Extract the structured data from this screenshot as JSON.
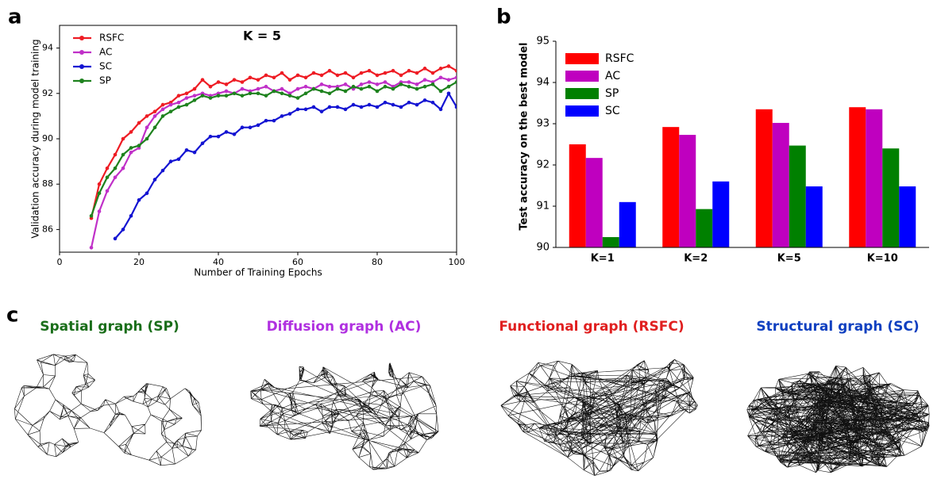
{
  "panels": [
    "a",
    "b",
    "c"
  ],
  "chart_data": [
    {
      "type": "line",
      "annotation": "K = 5",
      "x_label": "Number of Training Epochs",
      "y_label": "Validation accuracy during model training",
      "x": [
        8,
        10,
        12,
        14,
        16,
        18,
        20,
        22,
        24,
        26,
        28,
        30,
        32,
        34,
        36,
        38,
        40,
        42,
        44,
        46,
        48,
        50,
        52,
        54,
        56,
        58,
        60,
        62,
        64,
        66,
        68,
        70,
        72,
        74,
        76,
        78,
        80,
        82,
        84,
        86,
        88,
        90,
        92,
        94,
        96,
        98,
        100
      ],
      "series": [
        {
          "name": "RSFC",
          "color": "#ee1c24",
          "values": [
            86.5,
            88,
            88.7,
            89.3,
            90,
            90.3,
            90.7,
            91,
            91.2,
            91.5,
            91.6,
            91.9,
            92,
            92.2,
            92.6,
            92.3,
            92.5,
            92.4,
            92.6,
            92.5,
            92.7,
            92.6,
            92.8,
            92.7,
            92.9,
            92.6,
            92.8,
            92.7,
            92.9,
            92.8,
            93,
            92.8,
            92.9,
            92.7,
            92.9,
            93,
            92.8,
            92.9,
            93,
            92.8,
            93,
            92.9,
            93.1,
            92.9,
            93.1,
            93.2,
            93
          ]
        },
        {
          "name": "AC",
          "color": "#c030c8",
          "values": [
            85.2,
            86.8,
            87.7,
            88.3,
            88.7,
            89.4,
            89.6,
            90.5,
            91,
            91.3,
            91.5,
            91.6,
            91.8,
            91.9,
            92,
            91.9,
            92,
            92.1,
            92,
            92.2,
            92.1,
            92.2,
            92.3,
            92.1,
            92.2,
            92,
            92.2,
            92.3,
            92.2,
            92.4,
            92.3,
            92.3,
            92.4,
            92.2,
            92.4,
            92.5,
            92.4,
            92.5,
            92.3,
            92.5,
            92.5,
            92.4,
            92.6,
            92.5,
            92.7,
            92.6,
            92.7
          ]
        },
        {
          "name": "SC",
          "color": "#1414d2",
          "values": [
            null,
            null,
            null,
            85.6,
            86,
            86.6,
            87.3,
            87.6,
            88.2,
            88.6,
            89,
            89.1,
            89.5,
            89.4,
            89.8,
            90.1,
            90.1,
            90.3,
            90.2,
            90.5,
            90.5,
            90.6,
            90.8,
            90.8,
            91,
            91.1,
            91.3,
            91.3,
            91.4,
            91.2,
            91.4,
            91.4,
            91.3,
            91.5,
            91.4,
            91.5,
            91.4,
            91.6,
            91.5,
            91.4,
            91.6,
            91.5,
            91.7,
            91.6,
            91.3,
            92,
            91.4
          ]
        },
        {
          "name": "SP",
          "color": "#1e821e",
          "values": [
            86.6,
            87.6,
            88.3,
            88.7,
            89.3,
            89.6,
            89.7,
            90,
            90.5,
            91,
            91.2,
            91.4,
            91.5,
            91.7,
            91.9,
            91.8,
            91.9,
            91.9,
            92,
            91.9,
            92,
            92,
            91.9,
            92.1,
            92,
            91.9,
            91.8,
            92,
            92.2,
            92.1,
            92,
            92.2,
            92.1,
            92.3,
            92.2,
            92.3,
            92.1,
            92.3,
            92.2,
            92.4,
            92.3,
            92.2,
            92.3,
            92.4,
            92.1,
            92.3,
            92.5
          ]
        }
      ],
      "xlim": [
        0,
        100
      ],
      "xticks": [
        0,
        20,
        40,
        60,
        80,
        100
      ],
      "ylim": [
        85,
        95
      ],
      "yticks": [
        86,
        88,
        90,
        92,
        94
      ],
      "legend": "upper left"
    },
    {
      "type": "bar",
      "y_label": "Test accuracy on the best model",
      "categories": [
        "K=1",
        "K=2",
        "K=5",
        "K=10"
      ],
      "series": [
        {
          "name": "RSFC",
          "color": "#ff0000",
          "values": [
            92.5,
            92.92,
            93.35,
            93.4
          ]
        },
        {
          "name": "AC",
          "color": "#bf00bf",
          "values": [
            92.17,
            92.73,
            93.02,
            93.35
          ]
        },
        {
          "name": "SP",
          "color": "#008000",
          "values": [
            90.25,
            90.93,
            92.47,
            92.4
          ]
        },
        {
          "name": "SC",
          "color": "#0000ff",
          "values": [
            91.1,
            91.6,
            91.48,
            91.48
          ]
        }
      ],
      "ylim": [
        90,
        95
      ],
      "yticks": [
        90,
        91,
        92,
        93,
        94,
        95
      ],
      "legend": "upper left"
    }
  ],
  "graphs": [
    {
      "title": "Spatial graph (SP)",
      "color": "#1a6e1a"
    },
    {
      "title": "Diffusion graph (AC)",
      "color": "#b030e0"
    },
    {
      "title": "Functional graph (RSFC)",
      "color": "#e02020"
    },
    {
      "title": "Structural graph (SC)",
      "color": "#1040c0"
    }
  ]
}
